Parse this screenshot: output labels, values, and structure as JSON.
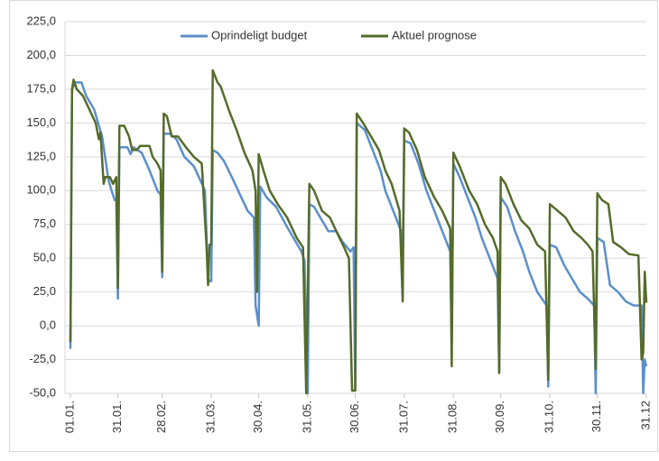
{
  "chart_data": {
    "type": "line",
    "ylim": [
      -50,
      225
    ],
    "yticks": [
      {
        "value": -50,
        "label": "-50,0"
      },
      {
        "value": -25,
        "label": "-25,0"
      },
      {
        "value": 0,
        "label": "0,0"
      },
      {
        "value": 25,
        "label": "25,0"
      },
      {
        "value": 50,
        "label": "50,0"
      },
      {
        "value": 75,
        "label": "75,0"
      },
      {
        "value": 100,
        "label": "100,0"
      },
      {
        "value": 125,
        "label": "125,0"
      },
      {
        "value": 150,
        "label": "150,0"
      },
      {
        "value": 175,
        "label": "175,0"
      },
      {
        "value": 200,
        "label": "200,0"
      },
      {
        "value": 225,
        "label": "225,0"
      }
    ],
    "xlim": [
      0,
      364
    ],
    "xticks": [
      {
        "value": 0,
        "label": "01.01."
      },
      {
        "value": 30,
        "label": "31.01."
      },
      {
        "value": 58,
        "label": "28.02."
      },
      {
        "value": 89,
        "label": "31.03."
      },
      {
        "value": 119,
        "label": "30.04."
      },
      {
        "value": 150,
        "label": "31.05."
      },
      {
        "value": 180,
        "label": "30.06."
      },
      {
        "value": 211,
        "label": "31.07."
      },
      {
        "value": 242,
        "label": "31.08."
      },
      {
        "value": 272,
        "label": "30.09."
      },
      {
        "value": 303,
        "label": "31.10."
      },
      {
        "value": 333,
        "label": "30.11."
      },
      {
        "value": 364,
        "label": "31.12"
      }
    ],
    "grid": true,
    "legend": "top",
    "series": [
      {
        "name": "Oprindeligt budget",
        "color": "#5b8fcb",
        "x": [
          0,
          1,
          3,
          7,
          10,
          15,
          20,
          24,
          26,
          28,
          29,
          30,
          31,
          36,
          38,
          40,
          45,
          50,
          55,
          57,
          58,
          59,
          63,
          67,
          72,
          78,
          82,
          85,
          87,
          88,
          89,
          90,
          93,
          97,
          102,
          108,
          112,
          116,
          117,
          119,
          120,
          124,
          130,
          136,
          141,
          146,
          148,
          149,
          150,
          151,
          154,
          158,
          163,
          168,
          172,
          177,
          179,
          180,
          181,
          186,
          191,
          196,
          199,
          204,
          209,
          210,
          211,
          215,
          220,
          225,
          230,
          235,
          240,
          241,
          242,
          246,
          251,
          256,
          260,
          265,
          270,
          271,
          272,
          276,
          281,
          286,
          290,
          295,
          301,
          302,
          303,
          307,
          312,
          317,
          322,
          327,
          331,
          332,
          333,
          337,
          341,
          346,
          351,
          356,
          361,
          362,
          363,
          364
        ],
        "values": [
          -17,
          175,
          180,
          180,
          170,
          160,
          140,
          108,
          100,
          93,
          93,
          20,
          132,
          132,
          127,
          132,
          128,
          115,
          100,
          97,
          36,
          142,
          142,
          138,
          125,
          118,
          108,
          100,
          35,
          33,
          33,
          130,
          128,
          122,
          110,
          95,
          85,
          80,
          15,
          0,
          103,
          95,
          88,
          75,
          65,
          55,
          48,
          -15,
          -50,
          90,
          88,
          80,
          70,
          70,
          62,
          55,
          58,
          -48,
          150,
          145,
          130,
          115,
          100,
          85,
          70,
          45,
          137,
          135,
          120,
          100,
          85,
          70,
          55,
          -10,
          120,
          110,
          95,
          80,
          65,
          50,
          35,
          -35,
          95,
          88,
          70,
          55,
          40,
          25,
          15,
          -45,
          60,
          58,
          45,
          35,
          25,
          20,
          15,
          -50,
          65,
          62,
          30,
          25,
          18,
          15,
          15,
          -50,
          -25,
          -30
        ]
      },
      {
        "name": "Aktuel prognose",
        "color": "#556b2a",
        "x": [
          0,
          1,
          2,
          4,
          8,
          12,
          16,
          18,
          19,
          21,
          22,
          25,
          27,
          29,
          30,
          31,
          34,
          37,
          39,
          42,
          44,
          50,
          52,
          55,
          57,
          58,
          59,
          61,
          64,
          68,
          73,
          78,
          83,
          86,
          87,
          88,
          89,
          90,
          93,
          95,
          100,
          105,
          110,
          115,
          117,
          118,
          119,
          122,
          126,
          131,
          137,
          143,
          147,
          149,
          151,
          154,
          159,
          164,
          168,
          173,
          176,
          178,
          180,
          181,
          185,
          190,
          195,
          199,
          203,
          208,
          210,
          211,
          214,
          219,
          224,
          230,
          235,
          240,
          241,
          242,
          246,
          252,
          257,
          262,
          267,
          270,
          271,
          272,
          275,
          280,
          285,
          290,
          295,
          300,
          302,
          303,
          308,
          313,
          318,
          323,
          327,
          330,
          332,
          333,
          336,
          340,
          343,
          348,
          353,
          359,
          361,
          362,
          363,
          364
        ],
        "values": [
          -12,
          175,
          182,
          175,
          170,
          160,
          150,
          138,
          143,
          105,
          110,
          110,
          105,
          110,
          28,
          148,
          148,
          140,
          130,
          130,
          133,
          133,
          125,
          120,
          115,
          40,
          157,
          155,
          140,
          140,
          132,
          125,
          120,
          60,
          30,
          60,
          60,
          189,
          180,
          177,
          160,
          145,
          128,
          115,
          100,
          25,
          127,
          115,
          100,
          90,
          80,
          65,
          58,
          -50,
          105,
          100,
          85,
          80,
          70,
          58,
          50,
          -48,
          -48,
          157,
          150,
          140,
          130,
          115,
          105,
          85,
          18,
          146,
          143,
          130,
          110,
          95,
          85,
          72,
          -30,
          128,
          118,
          100,
          90,
          75,
          65,
          55,
          -35,
          110,
          105,
          90,
          78,
          72,
          60,
          55,
          -40,
          90,
          85,
          80,
          70,
          65,
          60,
          55,
          -32,
          98,
          93,
          90,
          62,
          58,
          53,
          52,
          -25,
          -20,
          40,
          17
        ]
      }
    ]
  }
}
